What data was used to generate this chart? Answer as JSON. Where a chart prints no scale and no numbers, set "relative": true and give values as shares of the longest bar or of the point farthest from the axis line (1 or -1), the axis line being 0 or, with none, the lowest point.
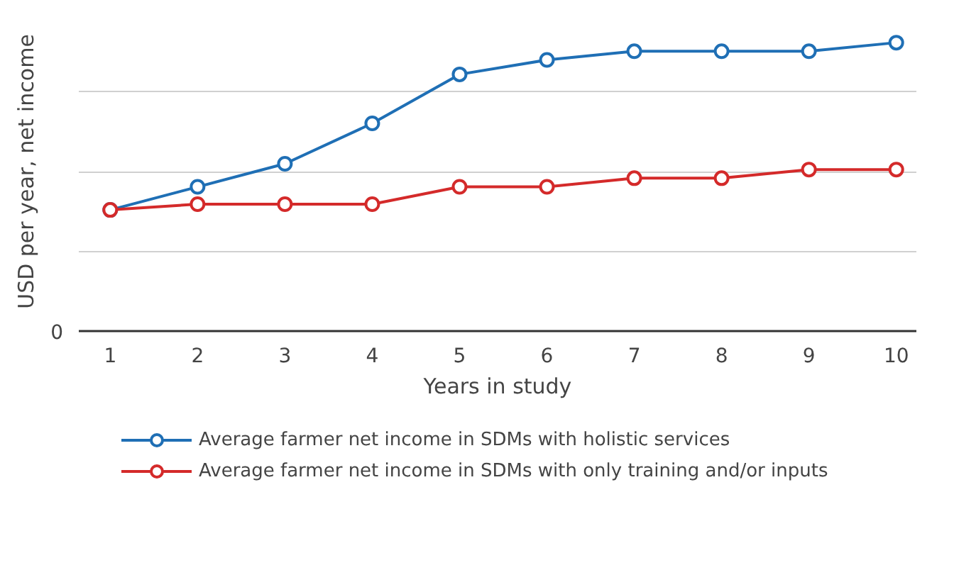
{
  "chart_data": {
    "type": "line",
    "relative": true,
    "ylabel": "USD per year, net income",
    "xlabel": "Years in study",
    "x": [
      1,
      2,
      3,
      4,
      5,
      6,
      7,
      8,
      9,
      10
    ],
    "xlim": [
      0.64,
      10.23
    ],
    "xticks": [
      1,
      2,
      3,
      4,
      5,
      6,
      7,
      8,
      9,
      10
    ],
    "annotations": [
      "0"
    ],
    "grid": "y",
    "legend": "bottom",
    "marker": "circle",
    "line_style": "solid",
    "series": [
      {
        "name": "Average farmer net income in SDMs with holistic services",
        "color": "#1f6fb5",
        "values": [
          0.42,
          0.5,
          0.58,
          0.72,
          0.89,
          0.94,
          0.97,
          0.97,
          0.97,
          1
        ]
      },
      {
        "name": "Average farmer net income in SDMs with only training and/or inputs",
        "color": "#d42a2a",
        "values": [
          0.42,
          0.44,
          0.44,
          0.44,
          0.5,
          0.5,
          0.53,
          0.53,
          0.56,
          0.56
        ]
      }
    ]
  }
}
